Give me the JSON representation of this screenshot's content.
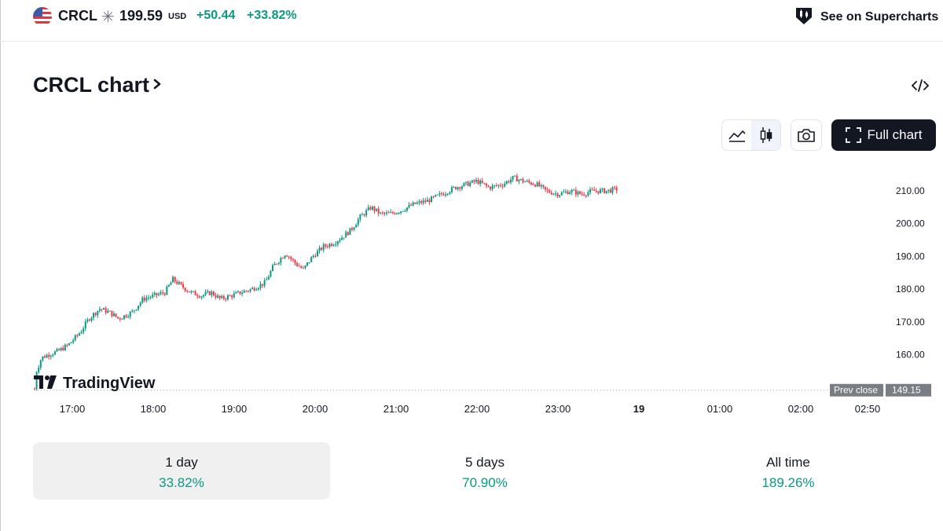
{
  "header": {
    "ticker": "CRCL",
    "asterisk": "✳",
    "price": "199.59",
    "currency": "USD",
    "change_abs": "+50.44",
    "change_pct": "+33.82%",
    "supercharts_label": "See on Supercharts"
  },
  "title": "CRCL chart",
  "toolbar": {
    "full_chart_label": "Full chart",
    "icons": [
      "area-chart-icon",
      "candles-icon",
      "camera-icon",
      "expand-icon",
      "embed-code-icon"
    ]
  },
  "chart_data": {
    "type": "candlestick",
    "x_ticks": [
      "17:00",
      "18:00",
      "19:00",
      "20:00",
      "21:00",
      "22:00",
      "23:00",
      "19",
      "01:00",
      "02:00",
      "02:50"
    ],
    "y_ticks": [
      "210.00",
      "200.00",
      "190.00",
      "180.00",
      "170.00",
      "160.00"
    ],
    "ylim": [
      147,
      216
    ],
    "prev_close_label": "Prev close",
    "prev_close_value": "149.15",
    "watermark": "TradingView",
    "close_path": [
      [
        0,
        149.5
      ],
      [
        1.5,
        155
      ],
      [
        5,
        159
      ],
      [
        10,
        160
      ],
      [
        17,
        161
      ],
      [
        25,
        163
      ],
      [
        34,
        167
      ],
      [
        40,
        171
      ],
      [
        48,
        174
      ],
      [
        55,
        173
      ],
      [
        62,
        171
      ],
      [
        72,
        173
      ],
      [
        80,
        177
      ],
      [
        88,
        178
      ],
      [
        96,
        179
      ],
      [
        102,
        183
      ],
      [
        108,
        181
      ],
      [
        115,
        179
      ],
      [
        123,
        178
      ],
      [
        130,
        179
      ],
      [
        137,
        177
      ],
      [
        145,
        178
      ],
      [
        152,
        179
      ],
      [
        160,
        180
      ],
      [
        170,
        182
      ],
      [
        176,
        187
      ],
      [
        185,
        191
      ],
      [
        192,
        188
      ],
      [
        198,
        186
      ],
      [
        205,
        190
      ],
      [
        213,
        193
      ],
      [
        220,
        194
      ],
      [
        227,
        196
      ],
      [
        233,
        198
      ],
      [
        240,
        202
      ],
      [
        248,
        205
      ],
      [
        255,
        203
      ],
      [
        262,
        203
      ],
      [
        270,
        204
      ],
      [
        280,
        206
      ],
      [
        290,
        207
      ],
      [
        300,
        209
      ],
      [
        310,
        211
      ],
      [
        318,
        212
      ],
      [
        326,
        213
      ],
      [
        335,
        211
      ],
      [
        345,
        212
      ],
      [
        353,
        214
      ],
      [
        360,
        213
      ],
      [
        370,
        212
      ],
      [
        377,
        210
      ],
      [
        386,
        209
      ],
      [
        395,
        210
      ],
      [
        403,
        209
      ],
      [
        412,
        210
      ],
      [
        422,
        210
      ],
      [
        429,
        210.5
      ]
    ],
    "x_minutes_note": "minutes after 16:35"
  },
  "periods": [
    {
      "label": "1 day",
      "value": "33.82%"
    },
    {
      "label": "5 days",
      "value": "70.90%"
    },
    {
      "label": "All time",
      "value": "189.26%"
    }
  ],
  "colors": {
    "up": "#089981",
    "down": "#f23645",
    "text": "#131722",
    "accent_dark": "#131722"
  }
}
